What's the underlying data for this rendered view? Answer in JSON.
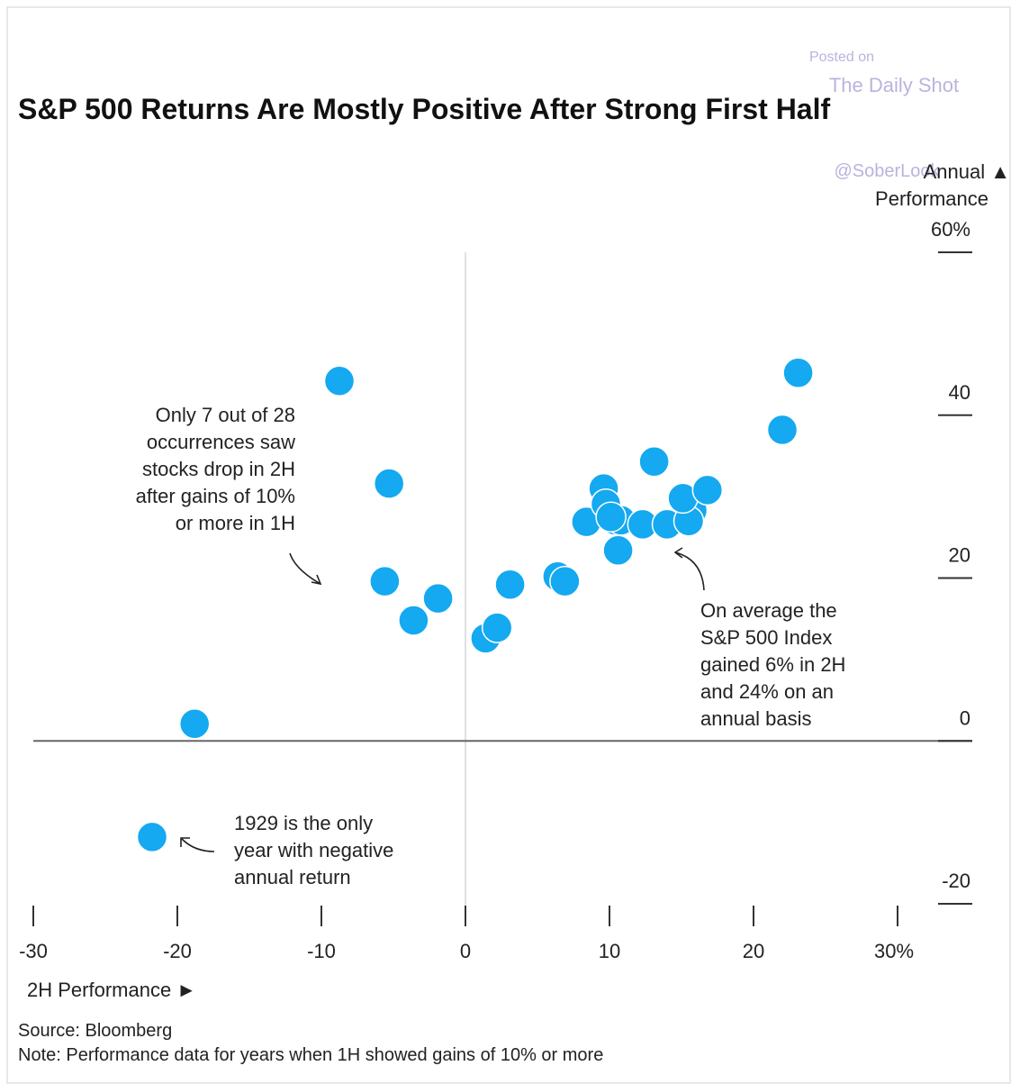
{
  "chart_data": {
    "type": "scatter",
    "title": "S&P 500 Returns Are Mostly Positive After Strong First Half",
    "watermark": [
      "Posted on",
      "The Daily Shot",
      "@SoberLook"
    ],
    "ylabel": [
      "Annual ▲",
      "Performance"
    ],
    "xlabel": "2H Performance ►",
    "source": "Source: Bloomberg",
    "note": "Note: Performance data for years when 1H showed gains of 10% or more",
    "annotations": [
      {
        "lines": [
          "Only 7 out of 28",
          "occurrences saw",
          "stocks drop in 2H",
          "after gains of 10%",
          "or more in 1H"
        ]
      },
      {
        "lines": [
          "On average the",
          "S&P 500 Index",
          "gained 6% in 2H",
          "and 24% on an",
          "annual basis"
        ]
      },
      {
        "lines": [
          "1929 is the only",
          "year with negative",
          "annual return"
        ]
      }
    ],
    "color": "#14a9f0",
    "zero_lines": true,
    "xlim": [
      -30,
      35
    ],
    "ylim": [
      -20,
      60
    ],
    "xticks": [
      -30,
      -20,
      -10,
      0,
      10,
      20,
      {
        "value": 30,
        "label": "30%"
      }
    ],
    "yticks": [
      -20,
      0,
      20,
      40,
      {
        "value": 60,
        "label": "60%"
      }
    ],
    "x": [
      -8.75,
      -5.3,
      -5.6,
      -3.6,
      -1.9,
      -18.8,
      -21.75,
      1.4,
      2.2,
      3.1,
      6.4,
      6.9,
      8.4,
      9.6,
      9.75,
      10.4,
      10.6,
      10.8,
      10.1,
      12.3,
      13.1,
      14.0,
      15.75,
      15.5,
      15.1,
      16.8,
      22.0,
      23.1
    ],
    "values": [
      44.2,
      31.6,
      19.6,
      14.8,
      17.5,
      2.1,
      -11.8,
      12.6,
      13.9,
      19.2,
      20.2,
      19.6,
      26.9,
      31.0,
      29.1,
      27.1,
      23.4,
      27.1,
      27.5,
      26.6,
      34.3,
      26.6,
      28.3,
      27.0,
      29.8,
      30.8,
      38.2,
      45.2
    ]
  }
}
